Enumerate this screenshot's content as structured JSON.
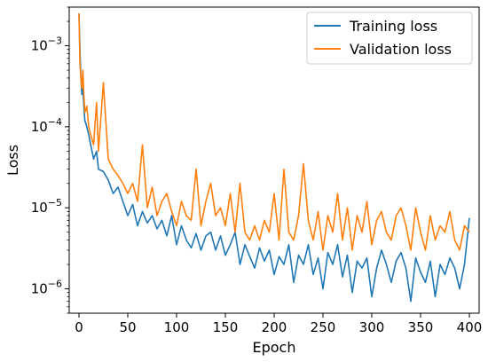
{
  "chart_data": {
    "type": "line",
    "title": "",
    "xlabel": "Epoch",
    "ylabel": "Loss",
    "xlim": [
      -10,
      410
    ],
    "ylim": [
      5e-07,
      0.003
    ],
    "yscale": "log",
    "x_ticks": [
      0,
      50,
      100,
      150,
      200,
      250,
      300,
      350,
      400
    ],
    "x_tick_labels": [
      "0",
      "50",
      "100",
      "150",
      "200",
      "250",
      "300",
      "350",
      "400"
    ],
    "y_ticks": [
      1e-06,
      1e-05,
      0.0001,
      0.001
    ],
    "y_tick_labels": [
      {
        "base": "10",
        "exp": "−6"
      },
      {
        "base": "10",
        "exp": "−5"
      },
      {
        "base": "10",
        "exp": "−4"
      },
      {
        "base": "10",
        "exp": "−3"
      }
    ],
    "grid": false,
    "legend_position": "top-right",
    "x": [
      0,
      1,
      2,
      3,
      4,
      5,
      6,
      8,
      10,
      12,
      15,
      18,
      20,
      25,
      30,
      35,
      40,
      45,
      50,
      55,
      60,
      65,
      70,
      75,
      80,
      85,
      90,
      95,
      100,
      105,
      110,
      115,
      120,
      125,
      130,
      135,
      140,
      145,
      150,
      155,
      160,
      165,
      170,
      175,
      180,
      185,
      190,
      195,
      200,
      205,
      210,
      215,
      220,
      225,
      230,
      235,
      240,
      245,
      250,
      255,
      260,
      265,
      270,
      275,
      280,
      285,
      290,
      295,
      300,
      305,
      310,
      315,
      320,
      325,
      330,
      335,
      340,
      345,
      350,
      355,
      360,
      365,
      370,
      375,
      380,
      385,
      390,
      395,
      400
    ],
    "series": [
      {
        "name": "Training loss",
        "color": "#1f77b4",
        "values": [
          0.0025,
          0.0009,
          0.0004,
          0.00025,
          0.0003,
          0.00018,
          0.00012,
          0.0001,
          8e-05,
          6e-05,
          4e-05,
          5e-05,
          3e-05,
          2.8e-05,
          2.2e-05,
          1.5e-05,
          1.8e-05,
          1.2e-05,
          8e-06,
          1.1e-05,
          6e-06,
          9e-06,
          6.5e-06,
          8e-06,
          5.5e-06,
          7e-06,
          4.5e-06,
          8e-06,
          3.5e-06,
          6e-06,
          4e-06,
          3.2e-06,
          4.8e-06,
          3e-06,
          4.5e-06,
          5e-06,
          3e-06,
          4.5e-06,
          2.6e-06,
          3.5e-06,
          5e-06,
          2e-06,
          3.5e-06,
          2.5e-06,
          1.8e-06,
          3.2e-06,
          2.2e-06,
          3e-06,
          1.5e-06,
          2.5e-06,
          2e-06,
          3.5e-06,
          1.2e-06,
          2.6e-06,
          2e-06,
          3.5e-06,
          1.5e-06,
          2.4e-06,
          1e-06,
          2.8e-06,
          2e-06,
          3.5e-06,
          1.4e-06,
          2.6e-06,
          9e-07,
          2.2e-06,
          1.8e-06,
          2.4e-06,
          8e-07,
          1.8e-06,
          3e-06,
          2e-06,
          1.2e-06,
          2.2e-06,
          2.8e-06,
          1.8e-06,
          7e-07,
          2.4e-06,
          1.6e-06,
          1.2e-06,
          2.2e-06,
          8e-07,
          2e-06,
          1.5e-06,
          2.4e-06,
          1.8e-06,
          1e-06,
          2e-06,
          7.5e-06
        ]
      },
      {
        "name": "Validation loss",
        "color": "#ff7f0e",
        "values": [
          0.0025,
          0.0006,
          0.0004,
          0.0003,
          0.0005,
          0.00025,
          0.00015,
          0.00018,
          0.0001,
          8e-05,
          6e-05,
          0.0002,
          5e-05,
          0.00035,
          4e-05,
          3e-05,
          2.5e-05,
          2e-05,
          1.5e-05,
          2e-05,
          1.2e-05,
          6e-05,
          1e-05,
          1.8e-05,
          8e-06,
          1.2e-05,
          1.5e-05,
          9e-06,
          6e-06,
          1.2e-05,
          8e-06,
          7e-06,
          3e-05,
          6e-06,
          1.2e-05,
          2e-05,
          8e-06,
          1e-05,
          6e-06,
          1.5e-05,
          5e-06,
          2e-05,
          5e-06,
          4e-06,
          6e-06,
          4e-06,
          7e-06,
          5e-06,
          1.5e-05,
          4e-06,
          3e-05,
          5e-06,
          4e-06,
          8e-06,
          3.5e-05,
          7e-06,
          4e-06,
          9e-06,
          3e-06,
          8e-06,
          5e-06,
          1.5e-05,
          4e-06,
          1e-05,
          3e-06,
          8e-06,
          5e-06,
          1.2e-05,
          3.5e-06,
          7e-06,
          9e-06,
          5e-06,
          4e-06,
          8e-06,
          1e-05,
          6e-06,
          3e-06,
          1e-05,
          5e-06,
          3e-06,
          8e-06,
          4e-06,
          6e-06,
          5e-06,
          9e-06,
          4e-06,
          3e-06,
          6e-06,
          5e-06
        ]
      }
    ]
  }
}
